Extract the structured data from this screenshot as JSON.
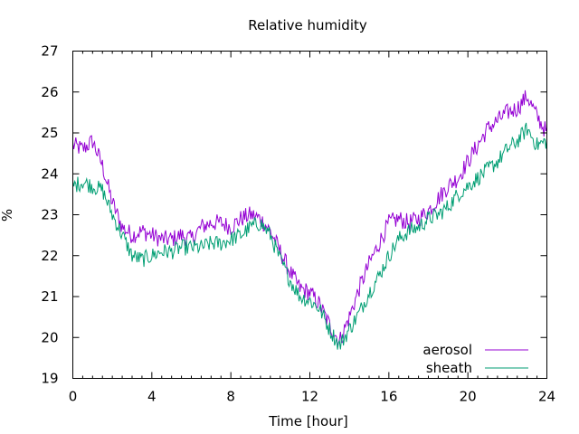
{
  "chart_data": {
    "type": "line",
    "title": "Relative humidity",
    "xlabel": "Time [hour]",
    "ylabel": "%",
    "xlim": [
      0,
      24
    ],
    "ylim": [
      19,
      27
    ],
    "xticks": [
      0,
      4,
      8,
      12,
      16,
      20,
      24
    ],
    "yticks": [
      19,
      20,
      21,
      22,
      23,
      24,
      25,
      26,
      27
    ],
    "grid": false,
    "legend_position": "bottom-right",
    "series": [
      {
        "name": "aerosol",
        "color": "#9400d3",
        "x": [
          0,
          0.5,
          1,
          1.5,
          2,
          2.5,
          3,
          3.5,
          4,
          4.5,
          5,
          5.5,
          6,
          6.5,
          7,
          7.5,
          8,
          8.5,
          9,
          9.5,
          10,
          10.5,
          11,
          11.5,
          12,
          12.5,
          13,
          13.5,
          14,
          14.5,
          15,
          15.5,
          16,
          16.5,
          17,
          17.5,
          18,
          18.5,
          19,
          19.5,
          20,
          20.5,
          21,
          21.5,
          22,
          22.5,
          23,
          23.5,
          24
        ],
        "y": [
          24.7,
          24.6,
          24.8,
          24.2,
          23.3,
          22.7,
          22.5,
          22.6,
          22.5,
          22.4,
          22.4,
          22.5,
          22.4,
          22.7,
          22.8,
          22.8,
          22.7,
          22.9,
          23.0,
          22.9,
          22.6,
          22.1,
          21.6,
          21.2,
          21.1,
          20.8,
          20.3,
          19.9,
          20.5,
          21.2,
          21.8,
          22.3,
          22.8,
          22.9,
          22.8,
          22.9,
          23.1,
          23.4,
          23.7,
          23.9,
          24.3,
          24.7,
          25.1,
          25.3,
          25.5,
          25.6,
          25.9,
          25.4,
          25.0
        ],
        "noise": 0.22
      },
      {
        "name": "sheath",
        "color": "#009e73",
        "x": [
          0,
          0.5,
          1,
          1.5,
          2,
          2.5,
          3,
          3.5,
          4,
          4.5,
          5,
          5.5,
          6,
          6.5,
          7,
          7.5,
          8,
          8.5,
          9,
          9.5,
          10,
          10.5,
          11,
          11.5,
          12,
          12.5,
          13,
          13.5,
          14,
          14.5,
          15,
          15.5,
          16,
          16.5,
          17,
          17.5,
          18,
          18.5,
          19,
          19.5,
          20,
          20.5,
          21,
          21.5,
          22,
          22.5,
          23,
          23.5,
          24
        ],
        "y": [
          23.7,
          23.8,
          23.7,
          23.6,
          23.0,
          22.5,
          22.0,
          21.9,
          22.0,
          22.1,
          22.1,
          22.2,
          22.2,
          22.2,
          22.3,
          22.3,
          22.4,
          22.5,
          22.7,
          22.8,
          22.5,
          21.9,
          21.4,
          21.0,
          20.9,
          20.7,
          20.2,
          19.8,
          20.2,
          20.6,
          21.1,
          21.5,
          22.0,
          22.4,
          22.6,
          22.7,
          22.9,
          23.0,
          23.2,
          23.5,
          23.7,
          23.9,
          24.1,
          24.3,
          24.6,
          24.8,
          25.1,
          24.7,
          24.8
        ],
        "noise": 0.2
      }
    ]
  }
}
